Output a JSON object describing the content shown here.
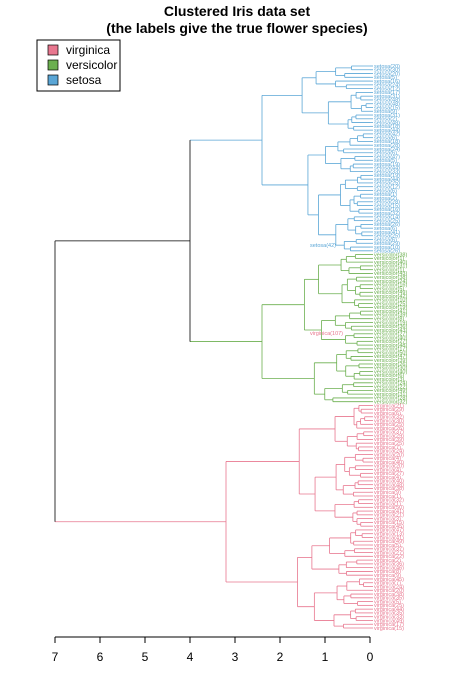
{
  "title_line1": "Clustered Iris data set",
  "title_line2": "(the labels give the true flower species)",
  "legend": [
    {
      "label": "virginica",
      "color": "#E8778F"
    },
    {
      "label": "versicolor",
      "color": "#6BAF4F"
    },
    {
      "label": "setosa",
      "color": "#5AA6D6"
    }
  ],
  "colors": {
    "root": "#000000",
    "virginica": "#E8778F",
    "versicolor": "#6BAF4F",
    "setosa": "#5AA6D6"
  },
  "chart_data": {
    "type": "dendrogram",
    "orientation": "horizontal",
    "x_axis": {
      "range": [
        7,
        0
      ],
      "ticks": [
        7,
        6,
        5,
        4,
        3,
        2,
        1,
        0
      ]
    },
    "root_height": 7.0,
    "clusters": [
      {
        "name": "setosa",
        "merge_height": 2.4,
        "join_height": 4.0,
        "leaf_count": 50
      },
      {
        "name": "versicolor",
        "merge_height": 2.4,
        "join_height": 4.0,
        "leaf_count": 40
      },
      {
        "name": "virginica",
        "merge_height": 3.2,
        "join_height": 7.0,
        "leaf_count": 60
      }
    ],
    "visible_labels": [
      "setosa(42)",
      "virginica(107)"
    ]
  }
}
